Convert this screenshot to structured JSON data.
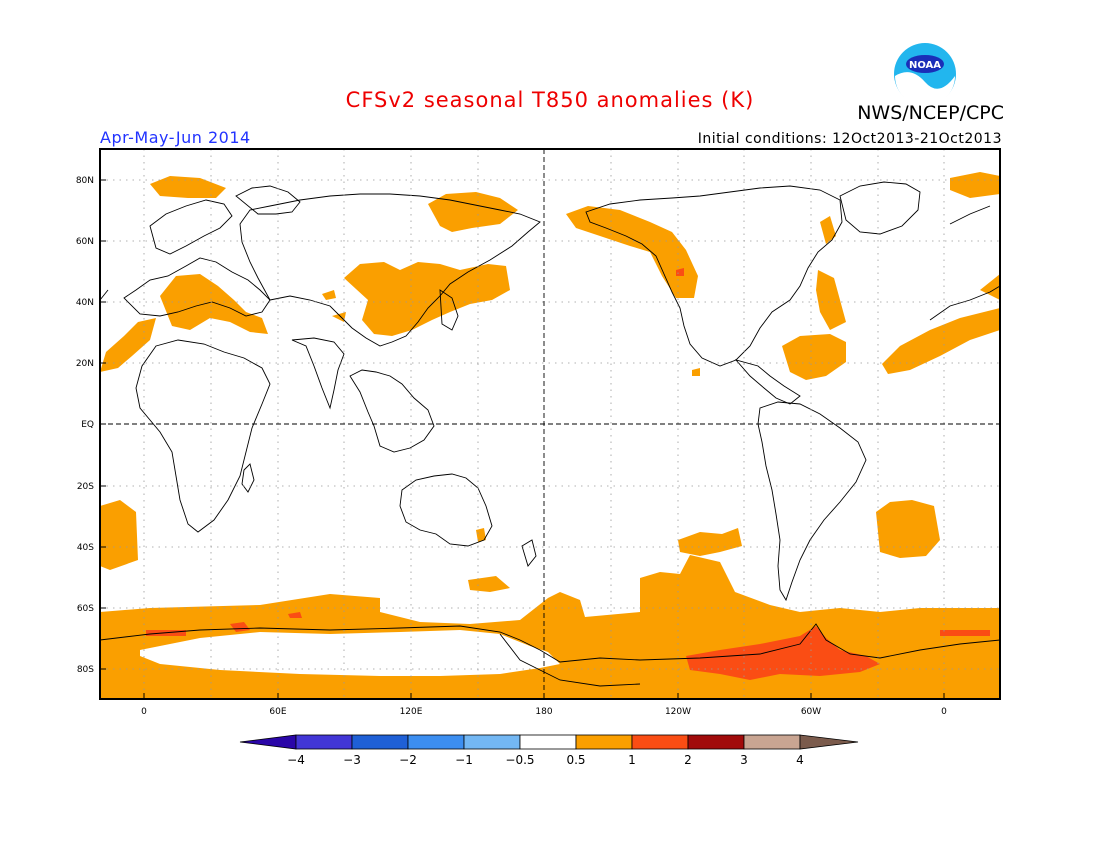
{
  "header": {
    "title": "CFSv2 seasonal T850 anomalies (K)",
    "agency": "NWS/NCEP/CPC",
    "period": "Apr-May-Jun 2014",
    "initial_conditions": "Initial conditions: 12Oct2013-21Oct2013",
    "logo_text": "NOAA"
  },
  "map": {
    "lat_labels": [
      "80N",
      "60N",
      "40N",
      "20N",
      "EQ",
      "20S",
      "40S",
      "60S",
      "80S"
    ],
    "lon_labels": [
      "0",
      "60E",
      "120E",
      "180",
      "120W",
      "60W",
      "0"
    ]
  },
  "colorbar": {
    "labels": [
      "−4",
      "−3",
      "−2",
      "−1",
      "−0.5",
      "0.5",
      "1",
      "2",
      "3",
      "4"
    ],
    "colors": [
      "#2a06a8",
      "#4236d6",
      "#1f60d6",
      "#3c8ef0",
      "#73b7f3",
      "#ffffff",
      "#fa9f00",
      "#fa4d14",
      "#a10b0b",
      "#c9a592",
      "#7b5b4c"
    ]
  }
}
